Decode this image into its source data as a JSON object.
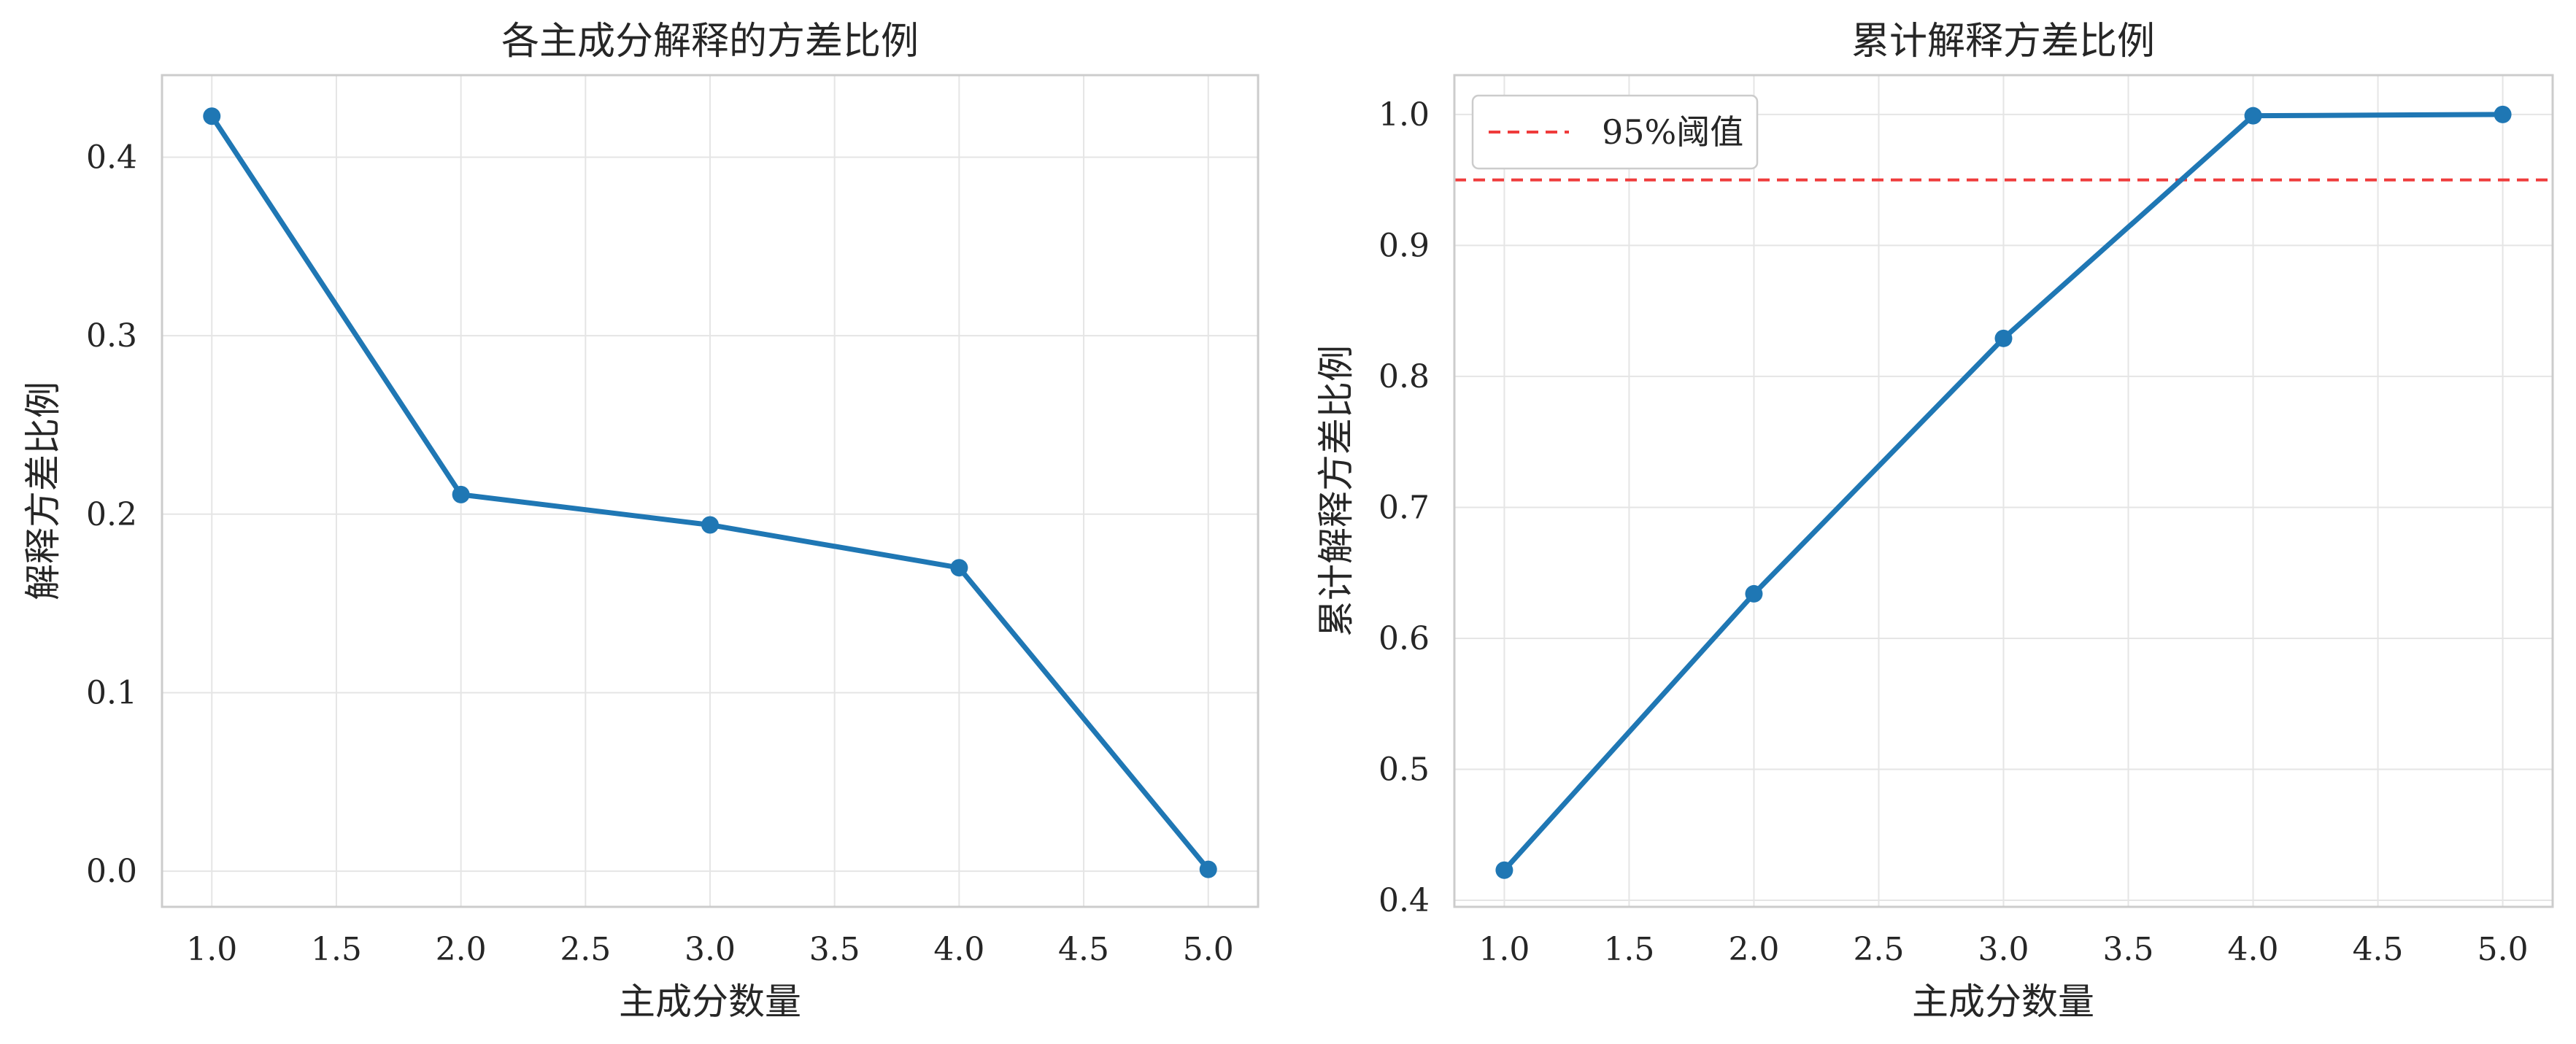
{
  "chart_data": [
    {
      "type": "line",
      "title": "各主成分解释的方差比例",
      "xlabel": "主成分数量",
      "ylabel": "解释方差比例",
      "x": [
        1,
        2,
        3,
        4,
        5
      ],
      "series": [
        {
          "values": [
            0.423,
            0.211,
            0.194,
            0.17,
            0.001
          ]
        }
      ],
      "xlim": [
        0.8,
        5.2
      ],
      "ylim": [
        -0.02,
        0.446
      ],
      "xticks": [
        1.0,
        1.5,
        2.0,
        2.5,
        3.0,
        3.5,
        4.0,
        4.5,
        5.0
      ],
      "xtick_labels": [
        "1.0",
        "1.5",
        "2.0",
        "2.5",
        "3.0",
        "3.5",
        "4.0",
        "4.5",
        "5.0"
      ],
      "yticks": [
        0.0,
        0.1,
        0.2,
        0.3,
        0.4
      ],
      "ytick_labels": [
        "0.0",
        "0.1",
        "0.2",
        "0.3",
        "0.4"
      ],
      "grid": true,
      "color": "#1f77b4"
    },
    {
      "type": "line",
      "title": "累计解释方差比例",
      "xlabel": "主成分数量",
      "ylabel": "累计解释方差比例",
      "x": [
        1,
        2,
        3,
        4,
        5
      ],
      "series": [
        {
          "values": [
            0.423,
            0.634,
            0.829,
            0.999,
            1.0
          ]
        }
      ],
      "threshold": {
        "name": "95%阈值",
        "value": 0.95,
        "color": "#ef3b3b",
        "style": "dashed"
      },
      "legend": {
        "placement": "top-left"
      },
      "xlim": [
        0.8,
        5.2
      ],
      "ylim": [
        0.395,
        1.03
      ],
      "xticks": [
        1.0,
        1.5,
        2.0,
        2.5,
        3.0,
        3.5,
        4.0,
        4.5,
        5.0
      ],
      "xtick_labels": [
        "1.0",
        "1.5",
        "2.0",
        "2.5",
        "3.0",
        "3.5",
        "4.0",
        "4.5",
        "5.0"
      ],
      "yticks": [
        0.4,
        0.5,
        0.6,
        0.7,
        0.8,
        0.9,
        1.0
      ],
      "ytick_labels": [
        "0.4",
        "0.5",
        "0.6",
        "0.7",
        "0.8",
        "0.9",
        "1.0"
      ],
      "grid": true,
      "color": "#1f77b4"
    }
  ]
}
